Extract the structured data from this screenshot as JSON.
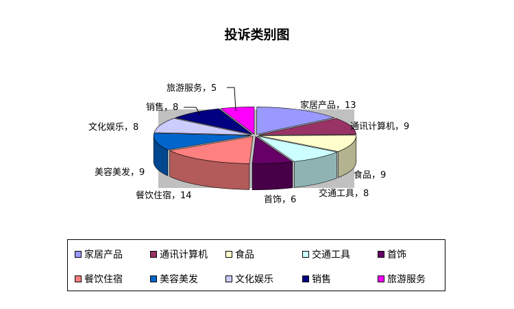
{
  "chart_data": {
    "type": "pie",
    "title": "投诉类别图",
    "categories": [
      "家居产品",
      "通讯计算机",
      "食品",
      "交通工具",
      "首饰",
      "餐饮住宿",
      "美容美发",
      "文化娱乐",
      "销售",
      "旅游服务"
    ],
    "values": [
      13,
      9,
      9,
      8,
      6,
      14,
      9,
      8,
      8,
      5
    ],
    "data_labels": [
      "家居产品，13",
      "通讯计算机，9",
      "食品，9",
      "交通工具，8",
      "首饰，6",
      "餐饮住宿，14",
      "美容美发，9",
      "文化娱乐，8",
      "销售，8",
      "旅游服务，5"
    ],
    "colors": [
      "#9999FF",
      "#993366",
      "#FFFFCC",
      "#CCFFFF",
      "#660066",
      "#FF8080",
      "#0066CC",
      "#CCCCFF",
      "#000080",
      "#FF00FF"
    ],
    "plot_area_color": "#C0C0C0",
    "legend_position": "bottom",
    "style": "3d-exploded"
  }
}
